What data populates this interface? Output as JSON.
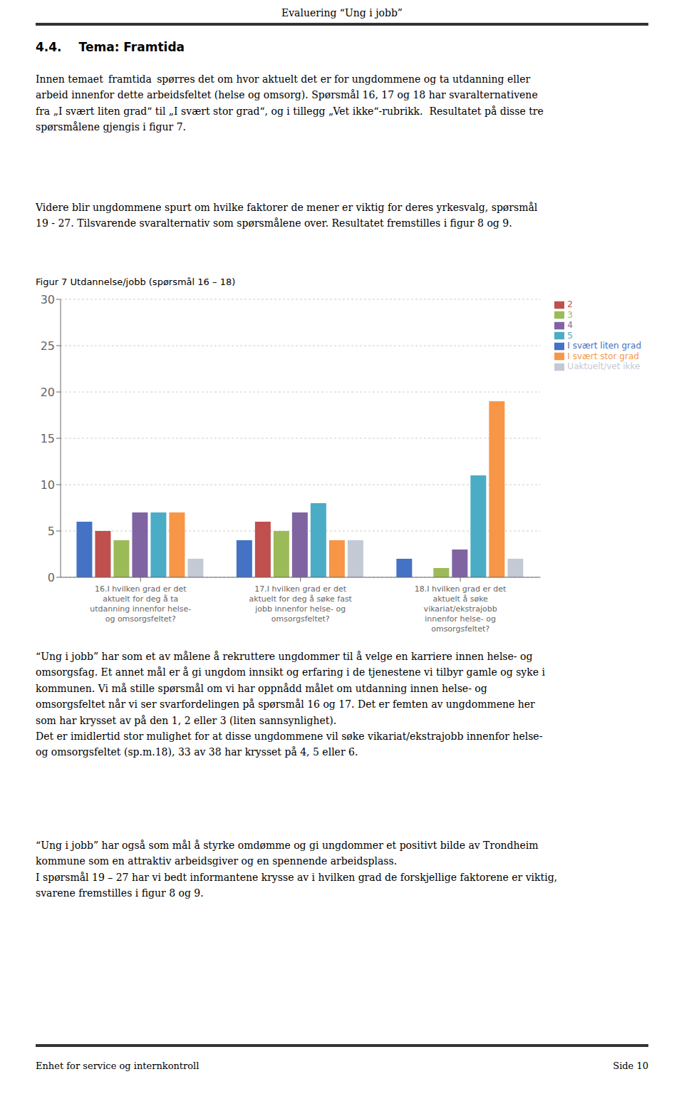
{
  "page_title": "Evaluering “Ung i jobb”",
  "section_number": "4.4.",
  "section_title": "Tema: Framtida",
  "texts": [
    "Innen temaet  framtida  spørres det om hvor aktuelt det er for ungdommene og ta utdanning eller\narbeid innenfor dette arbeidsfeltet (helse og omsorg). Spørsmål 16, 17 og 18 har svaralternativene\nfra „I svært liten grad“ til „I svært stor grad“, og i tillegg „Vet ikke“-rubrikk.  Resultatet på disse tre\nspørsmålene gjengis i figur 7.",
    "Videre blir ungdommene spurt om hvilke faktorer de mener er viktig for deres yrkesvalg, spørsmål\n19 - 27. Tilsvarende svaralternativ som spørsmålene over. Resultatet fremstilles i figur 8 og 9.",
    "“Ung i jobb” har som et av målene å rekruttere ungdommer til å velge en karriere innen helse- og\nomsorgsfag. Et annet mål er å gi ungdom innsikt og erfaring i de tjenestene vi tilbyr gamle og syke i\nkommunen. Vi må stille spørsmål om vi har oppnådd målet om utdanning innen helse- og\nomsorgsfeltet når vi ser svarfordelingen på spørsmål 16 og 17. Det er femten av ungdommene her\nsom har krysset av på den 1, 2 eller 3 (liten sannsynlighet).\nDet er imidlertid stor mulighet for at disse ungdommene vil søke vikariat/ekstrajobb innenfor helse-\nog omsorgsfeltet (sp.m.18), 33 av 38 har krysset på 4, 5 eller 6.",
    "“Ung i jobb” har også som mål å styrke omdømme og gi ungdommer et positivt bilde av Trondheim\nkommune som en attraktiv arbeidsgiver og en spennende arbeidsplass.\nI spørsmål 19 – 27 har vi bedt informantene krysse av i hvilken grad de forskjellige faktorene er viktig,\nsvarene fremstilles i figur 8 og 9."
  ],
  "footer_left": "Enhet for service og internkontroll",
  "footer_right": "Side 10",
  "chart_data": {
    "type": "bar",
    "title": "Figur 7 Utdannelse/jobb (spørsmål 16 – 18)",
    "categories": [
      "16.I hvilken grad er det\naktuelt for deg å ta\nutdanning innenfor helse-\nog omsorgsfeltet?",
      "17.I hvilken grad er det\naktuelt for deg å søke fast\njobb innenfor helse- og\nomsorgsfeltet?",
      "18.I hvilken grad er det\naktuelt å søke\nvikariat/ekstrajobb\ninnenfor helse- og\nomsorgsfeltet?"
    ],
    "series": [
      {
        "name": "I svært liten grad",
        "values": [
          6,
          4,
          2
        ],
        "color": "#4472C4"
      },
      {
        "name": "2",
        "values": [
          5,
          6,
          0
        ],
        "color": "#C0504D"
      },
      {
        "name": "3",
        "values": [
          4,
          5,
          1
        ],
        "color": "#9BBB59"
      },
      {
        "name": "4",
        "values": [
          7,
          7,
          3
        ],
        "color": "#8064A2"
      },
      {
        "name": "5",
        "values": [
          7,
          8,
          11
        ],
        "color": "#4BACC6"
      },
      {
        "name": "I svært stor grad",
        "values": [
          7,
          4,
          19
        ],
        "color": "#F79646"
      },
      {
        "name": "Uaktuelt/vet ikke",
        "values": [
          2,
          4,
          2
        ],
        "color": "#C4C9D6"
      }
    ],
    "ylim": [
      0,
      30
    ],
    "yticks": [
      0,
      5,
      10,
      15,
      20,
      25,
      30
    ],
    "grid": true,
    "legend": "right"
  }
}
